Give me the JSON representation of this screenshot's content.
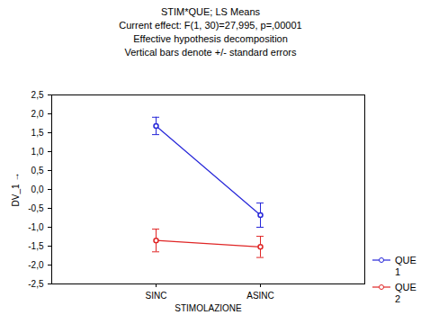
{
  "chart_data": {
    "type": "line",
    "title": "STIM*QUE; LS Means",
    "subtitle": [
      "Current effect: F(1, 30)=27,995, p=,00001",
      "Effective hypothesis decomposition",
      "Vertical bars denote +/- standard errors"
    ],
    "x_label": "STIMOLAZIONE",
    "y_label": "DV_1",
    "categories": [
      "SINC",
      "ASINC"
    ],
    "series": [
      {
        "name": "QUE 1",
        "color": "#2626d9",
        "marker": "circle",
        "values": [
          1.68,
          -0.68
        ],
        "errors": [
          0.23,
          0.32
        ]
      },
      {
        "name": "QUE 2",
        "color": "#e02626",
        "marker": "circle",
        "values": [
          -1.35,
          -1.52
        ],
        "errors": [
          0.3,
          0.28
        ]
      }
    ],
    "ylim": [
      -2.5,
      2.5
    ],
    "yticks": [
      {
        "value": -2.5,
        "label": "-2,5"
      },
      {
        "value": -2,
        "label": "-2,0"
      },
      {
        "value": -1.5,
        "label": "-1,5"
      },
      {
        "value": -1,
        "label": "-1,0"
      },
      {
        "value": -0.5,
        "label": "-0,5"
      },
      {
        "value": 0,
        "label": "0,0"
      },
      {
        "value": 0.5,
        "label": "0,5"
      },
      {
        "value": 1,
        "label": "1,0"
      },
      {
        "value": 1.5,
        "label": "1,5"
      },
      {
        "value": 2,
        "label": "2,0"
      },
      {
        "value": 2.5,
        "label": "2,5"
      }
    ],
    "grid": false,
    "legend": "right"
  }
}
